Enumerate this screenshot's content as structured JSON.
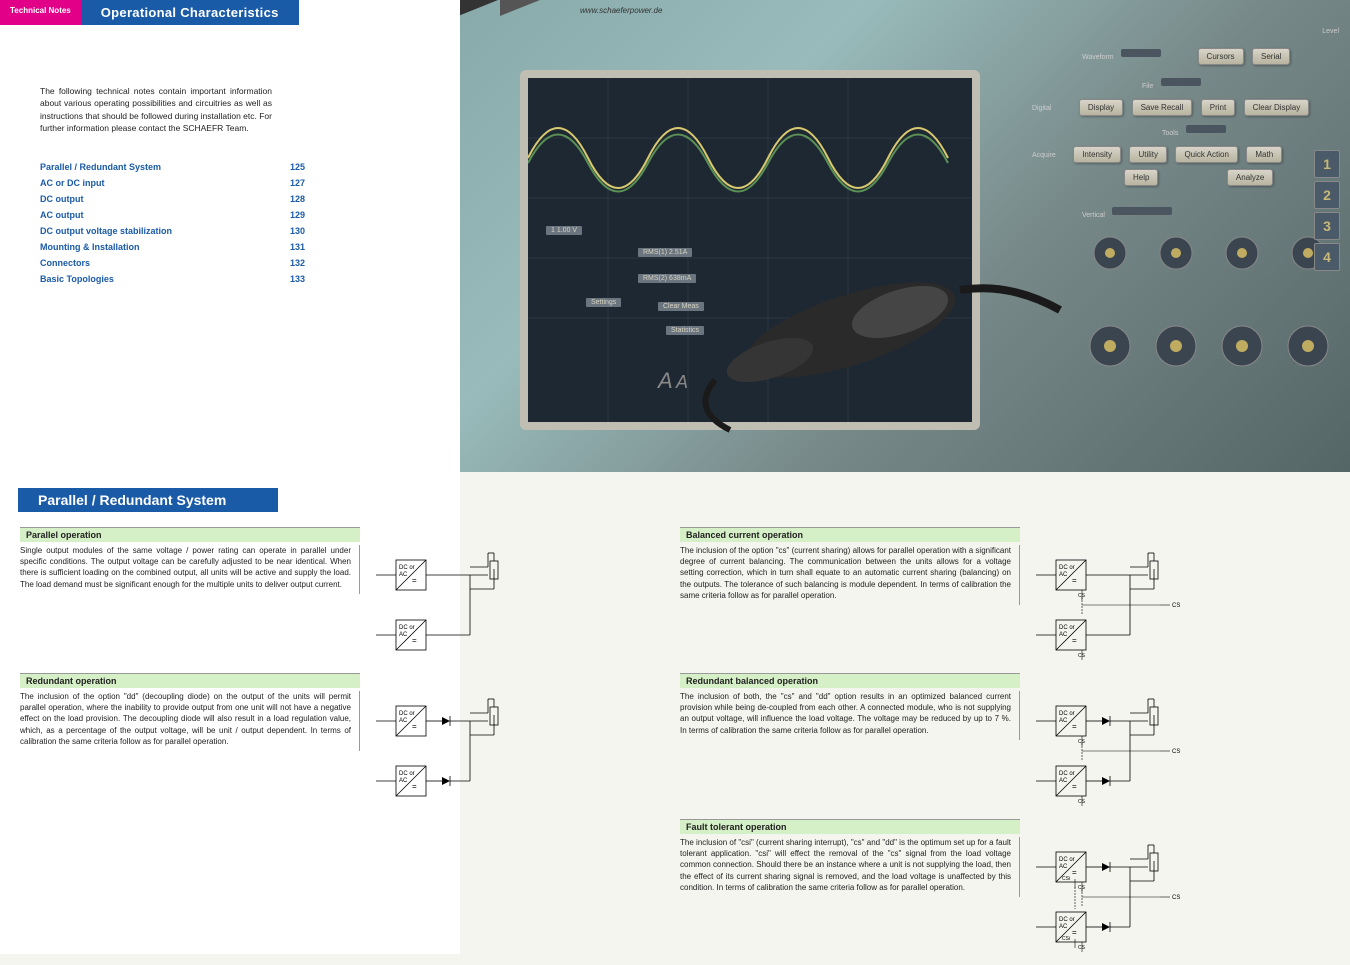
{
  "header": {
    "tab_notes": "Technical  Notes",
    "tab_title": "Operational Characteristics",
    "url": "www.schaeferpower.de"
  },
  "intro": "The following technical notes contain important information about various operating possibilities and circuitries as well as instructions that should be followed during installation etc. For further information please contact the SCHAEFR Team.",
  "toc": [
    {
      "label": "Parallel / Redundant System",
      "page": "125"
    },
    {
      "label": "AC or DC input",
      "page": "127"
    },
    {
      "label": "DC output",
      "page": "128"
    },
    {
      "label": "AC output",
      "page": "129"
    },
    {
      "label": "DC output voltage stabilization",
      "page": "130"
    },
    {
      "label": "Mounting & Installation",
      "page": "131"
    },
    {
      "label": "Connectors",
      "page": "132"
    },
    {
      "label": "Basic Topologies",
      "page": "133"
    }
  ],
  "section_header": "Parallel / Redundant System",
  "scope": {
    "menu_labels": [
      "Level",
      "Waveform",
      "Cursors",
      "Serial",
      "File",
      "Display",
      "Save Recall",
      "Print",
      "Digital",
      "Acquire",
      "Intensity",
      "Clear Display",
      "Tools",
      "Math",
      "Utility",
      "Quick Action",
      "Help",
      "Analyze",
      "Vertical"
    ],
    "screen_labels": [
      "1 1.00 V",
      "RMS(1) 2.51A",
      "RMS(2) 638mA",
      "Clear Meas",
      "Statistics",
      "Settings"
    ],
    "side_numbers": [
      "1",
      "2",
      "3",
      "4"
    ]
  },
  "blocks": {
    "parallel": {
      "title": "Parallel operation",
      "text": "Single output modules of the same voltage / power rating can operate in parallel under specific conditions. The output voltage can be carefully adjusted to be near identical. When there is sufficient loading on the combined output, all units will be active and supply the load. The load demand must be significant enough for the multiple units to deliver output current.",
      "diagram": {
        "units": 2,
        "diode": false,
        "cs": false,
        "csi": false,
        "load": true
      }
    },
    "redundant": {
      "title": "Redundant operation",
      "text": "The inclusion of the option \"dd\" (decoupling diode) on the output of the units will permit parallel operation, where the inability to provide output from one unit will not have a negative effect on the load provision. The decoupling diode will also result in a load regulation value, which, as a percentage of the output voltage, will be unit / output dependent. In terms of calibration the same criteria follow as for parallel operation.",
      "diagram": {
        "units": 2,
        "diode": true,
        "cs": false,
        "csi": false,
        "load": true
      }
    },
    "balanced": {
      "title": "Balanced current operation",
      "text": "The inclusion of the option \"cs\" (current sharing) allows for parallel operation with a significant degree of current balancing. The communication between the units allows for a voltage setting correction, which in turn shall equate to an automatic current sharing (balancing) on the outputs. The tolerance of such balancing is module dependent. In terms of calibration the same criteria follow as for parallel operation.",
      "diagram": {
        "units": 2,
        "diode": false,
        "cs": true,
        "csi": false,
        "load": true
      }
    },
    "redundant_balanced": {
      "title": "Redundant balanced operation",
      "text": "The inclusion of both, the \"cs\" and \"dd\" option results in an optimized balanced current provision while being de-coupled from each other. A connected module, who is not supplying an output voltage, will influence the load voltage. The voltage may be reduced by up to 7 %. In terms of calibration the same criteria follow as for parallel operation.",
      "diagram": {
        "units": 2,
        "diode": true,
        "cs": true,
        "csi": false,
        "load": true
      }
    },
    "fault": {
      "title": "Fault tolerant operation",
      "text": "The inclusion of \"csi\" (current sharing interrupt), \"cs\" and \"dd\" is the optimum set up for a fault tolerant application. \"csi\" will effect the removal of the \"cs\" signal from the load voltage common connection. Should there be an instance where a unit is not supplying the load, then the effect of its current sharing signal is removed, and the load voltage is unaffected by this condition. In terms of calibration the same criteria follow as for parallel operation.",
      "diagram": {
        "units": 2,
        "diode": true,
        "cs": true,
        "csi": true,
        "load": true
      }
    }
  },
  "diagram_labels": {
    "dc_or": "DC or",
    "ac": "AC",
    "cs": "CS",
    "csi": "CSi"
  },
  "colors": {
    "pink": "#e10087",
    "blue": "#1a5ba8",
    "green_box": "#d5efc6",
    "text": "#222222"
  }
}
